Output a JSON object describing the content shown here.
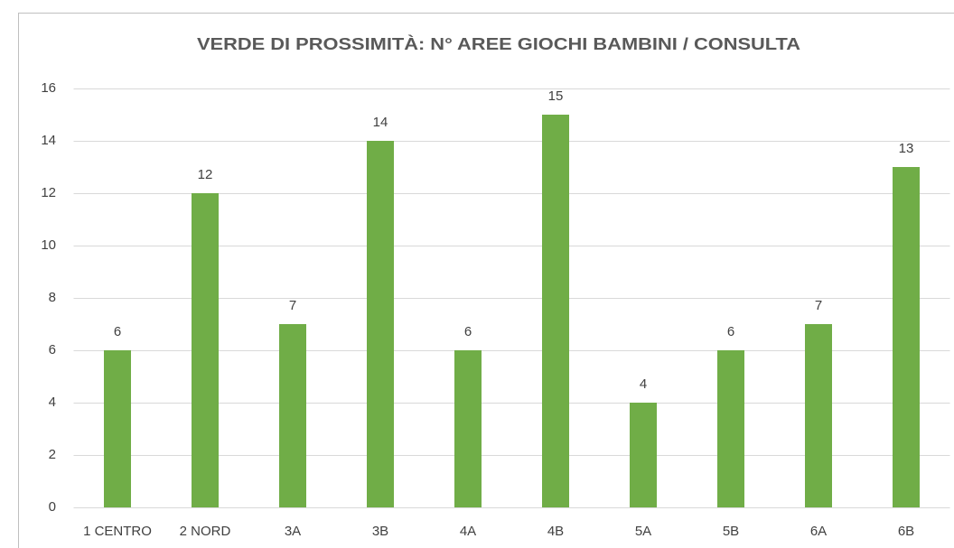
{
  "chart_data": {
    "type": "bar",
    "title": "VERDE DI PROSSIMITÀ: N° AREE GIOCHI BAMBINI / CONSULTA",
    "categories": [
      "1 CENTRO",
      "2 NORD",
      "3A",
      "3B",
      "4A",
      "4B",
      "5A",
      "5B",
      "6A",
      "6B"
    ],
    "values": [
      6,
      12,
      7,
      14,
      6,
      15,
      4,
      6,
      7,
      13
    ],
    "color": "#70ad47",
    "ylim": [
      0,
      16
    ],
    "yticks": [
      0,
      2,
      4,
      6,
      8,
      10,
      12,
      14,
      16
    ],
    "grid": true
  }
}
